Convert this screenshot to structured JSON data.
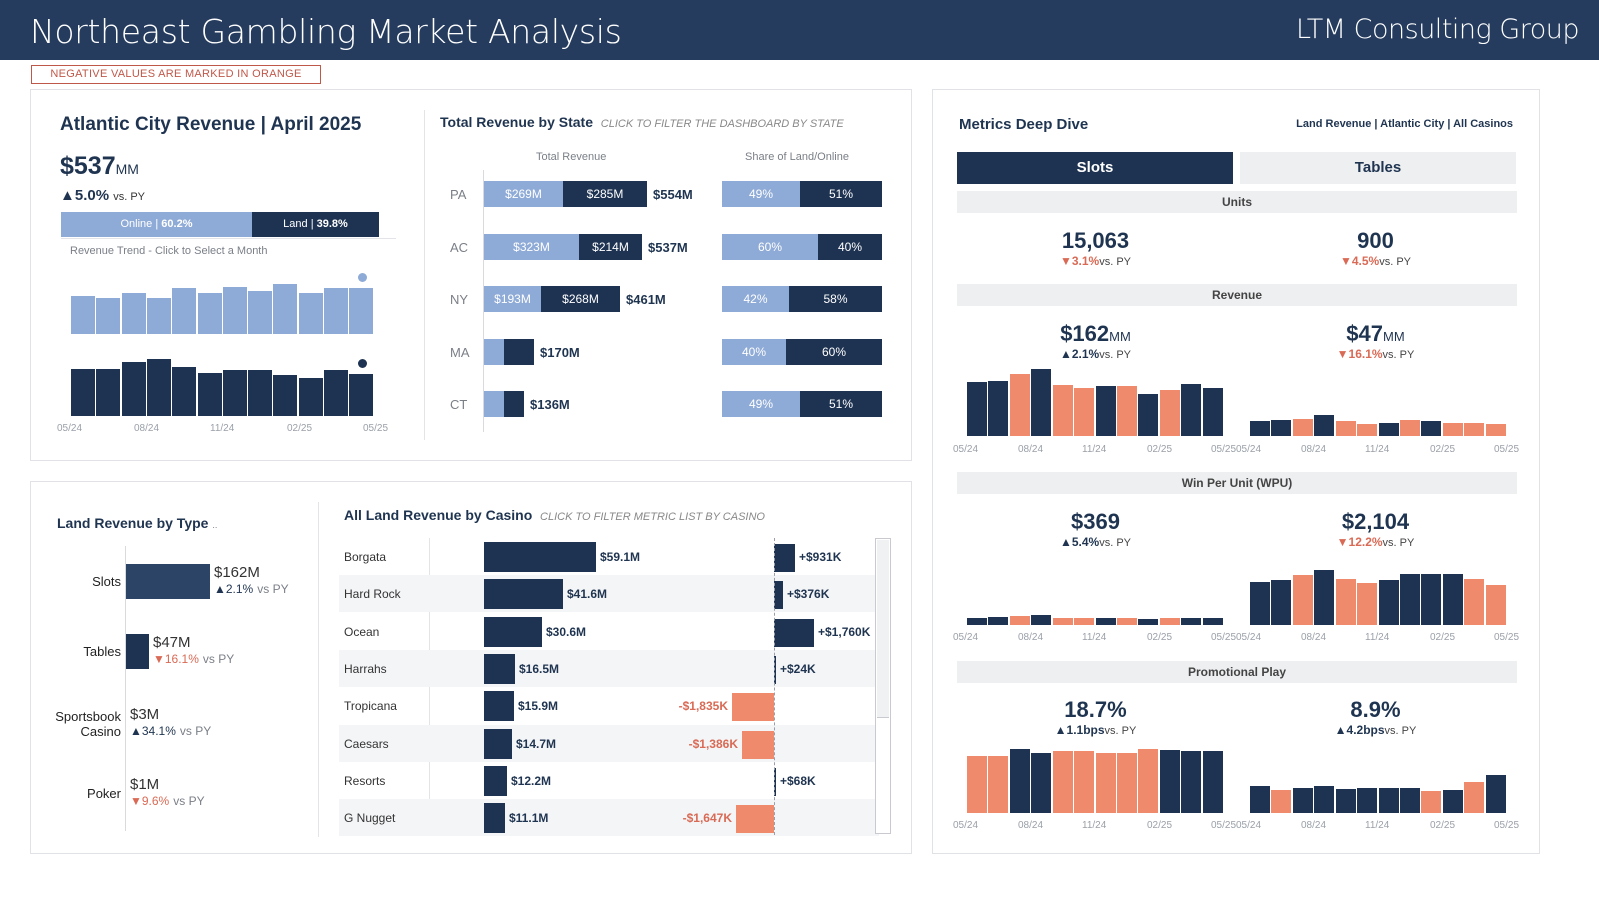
{
  "header": {
    "title": "Northeast Gambling Market Analysis",
    "company": "LTM Consulting Group"
  },
  "note": "NEGATIVE VALUES ARE MARKED IN ORANGE",
  "colors": {
    "navy": "#1e3352",
    "light": "#8eaad6",
    "orange": "#f08a6d",
    "negative": "#d96a55"
  },
  "ac": {
    "title": "Atlantic City Revenue | April 2025",
    "value": "$537",
    "unit": "MM",
    "change": "▲5.0%",
    "vs": "vs. PY",
    "online_label": "Online | ",
    "online_pct": "60.2%",
    "land_label": "Land | ",
    "land_pct": "39.8%",
    "online_share": 0.602,
    "trend_title": "Revenue Trend - Click to Select a Month",
    "online_trend": [
      0.63,
      0.6,
      0.67,
      0.6,
      0.76,
      0.68,
      0.78,
      0.7,
      0.82,
      0.68,
      0.76,
      0.75
    ],
    "land_trend": [
      0.78,
      0.77,
      0.88,
      0.94,
      0.8,
      0.7,
      0.75,
      0.76,
      0.68,
      0.63,
      0.76,
      0.69
    ],
    "x_ticks": [
      "05/24",
      "08/24",
      "11/24",
      "02/25",
      "05/25"
    ]
  },
  "states": {
    "title": "Total Revenue by State",
    "subtitle": "CLICK TO FILTER THE DASHBOARD BY STATE",
    "col1": "Total Revenue",
    "col2": "Share of Land/Online",
    "rows": [
      {
        "state": "PA",
        "online": "$269M",
        "land": "$285M",
        "total": "$554M",
        "online_v": 269,
        "land_v": 285,
        "online_pct": "49%",
        "land_pct": "51%",
        "online_share": 0.49
      },
      {
        "state": "AC",
        "online": "$323M",
        "land": "$214M",
        "total": "$537M",
        "online_v": 323,
        "land_v": 214,
        "online_pct": "60%",
        "land_pct": "40%",
        "online_share": 0.6
      },
      {
        "state": "NY",
        "online": "$193M",
        "land": "$268M",
        "total": "$461M",
        "online_v": 193,
        "land_v": 268,
        "online_pct": "42%",
        "land_pct": "58%",
        "online_share": 0.42
      },
      {
        "state": "MA",
        "online": "",
        "land": "",
        "total": "$170M",
        "online_v": 68,
        "land_v": 102,
        "online_pct": "40%",
        "land_pct": "60%",
        "online_share": 0.4
      },
      {
        "state": "CT",
        "online": "",
        "land": "",
        "total": "$136M",
        "online_v": 67,
        "land_v": 69,
        "online_pct": "49%",
        "land_pct": "51%",
        "online_share": 0.49
      }
    ]
  },
  "land_type": {
    "title": "Land Revenue by Type",
    "rows": [
      {
        "name": "Slots",
        "name2": "",
        "value": "$162M",
        "change": "▲2.1%",
        "vs": "vs PY",
        "dir": "up",
        "v": 162
      },
      {
        "name": "Tables",
        "name2": "",
        "value": "$47M",
        "change": "▼16.1%",
        "vs": "vs PY",
        "dir": "down",
        "v": 47
      },
      {
        "name": "Sportsbook",
        "name2": "Casino",
        "value": "$3M",
        "change": "▲34.1%",
        "vs": "vs PY",
        "dir": "up",
        "v": 3
      },
      {
        "name": "Poker",
        "name2": "",
        "value": "$1M",
        "change": "▼9.6%",
        "vs": "vs PY",
        "dir": "down",
        "v": 1
      }
    ]
  },
  "casino": {
    "title": "All Land Revenue by Casino",
    "subtitle": "CLICK TO FILTER METRIC LIST BY CASINO",
    "rows": [
      {
        "name": "Borgata",
        "value": "$59.1M",
        "v": 59.1,
        "delta": "+$931K",
        "d": 931
      },
      {
        "name": "Hard Rock",
        "value": "$41.6M",
        "v": 41.6,
        "delta": "+$376K",
        "d": 376
      },
      {
        "name": "Ocean",
        "value": "$30.6M",
        "v": 30.6,
        "delta": "+$1,760K",
        "d": 1760
      },
      {
        "name": "Harrahs",
        "value": "$16.5M",
        "v": 16.5,
        "delta": "+$24K",
        "d": 24
      },
      {
        "name": "Tropicana",
        "value": "$15.9M",
        "v": 15.9,
        "delta": "-$1,835K",
        "d": -1835
      },
      {
        "name": "Caesars",
        "value": "$14.7M",
        "v": 14.7,
        "delta": "-$1,386K",
        "d": -1386
      },
      {
        "name": "Resorts",
        "value": "$12.2M",
        "v": 12.2,
        "delta": "+$68K",
        "d": 68
      },
      {
        "name": "G Nugget",
        "value": "$11.1M",
        "v": 11.1,
        "delta": "-$1,647K",
        "d": -1647
      }
    ]
  },
  "metrics": {
    "title": "Metrics Deep Dive",
    "filter": "Land Revenue | Atlantic City | All Casinos",
    "tab_slots": "Slots",
    "tab_tables": "Tables",
    "sec_units": "Units",
    "sec_revenue": "Revenue",
    "sec_wpu": "Win Per Unit (WPU)",
    "sec_promo": "Promotional Play",
    "units": [
      {
        "value": "15,063",
        "change": "▼3.1%",
        "vs": "vs. PY",
        "dir": "down"
      },
      {
        "value": "900",
        "change": "▼4.5%",
        "vs": "vs. PY",
        "dir": "down"
      }
    ],
    "revenue": [
      {
        "value": "$162",
        "unit": "MM",
        "change": "▲2.1%",
        "vs": "vs. PY",
        "dir": "up"
      },
      {
        "value": "$47",
        "unit": "MM",
        "change": "▼16.1%",
        "vs": "vs. PY",
        "dir": "down"
      }
    ],
    "wpu": [
      {
        "value": "$369",
        "change": "▲5.4%",
        "vs": "vs. PY",
        "dir": "up"
      },
      {
        "value": "$2,104",
        "change": "▼12.2%",
        "vs": "vs. PY",
        "dir": "down"
      }
    ],
    "promo": [
      {
        "value": "18.7%",
        "change": "▲1.1bps",
        "vs": "vs. PY",
        "dir": "up"
      },
      {
        "value": "8.9%",
        "change": "▲4.2bps",
        "vs": "vs. PY",
        "dir": "up"
      }
    ],
    "x_ticks": [
      "05/24",
      "08/24",
      "11/24",
      "02/25",
      "05/25"
    ],
    "charts": {
      "rev_slots": {
        "v": [
          0.8,
          0.82,
          0.93,
          1.0,
          0.76,
          0.72,
          0.74,
          0.74,
          0.63,
          0.68,
          0.77,
          0.72
        ],
        "neg": [
          0,
          0,
          1,
          0,
          1,
          1,
          0,
          1,
          0,
          1,
          0,
          0
        ]
      },
      "rev_tables": {
        "v": [
          0.22,
          0.24,
          0.26,
          0.31,
          0.22,
          0.18,
          0.2,
          0.24,
          0.22,
          0.2,
          0.2,
          0.18
        ],
        "neg": [
          0,
          0,
          1,
          0,
          1,
          1,
          0,
          1,
          0,
          1,
          1,
          1
        ]
      },
      "wpu_slots": {
        "v": [
          0.1,
          0.12,
          0.13,
          0.15,
          0.1,
          0.11,
          0.11,
          0.11,
          0.09,
          0.1,
          0.1,
          0.1
        ],
        "neg": [
          0,
          0,
          1,
          0,
          1,
          1,
          0,
          1,
          0,
          1,
          0,
          0
        ]
      },
      "wpu_tables": {
        "v": [
          0.64,
          0.67,
          0.74,
          0.82,
          0.68,
          0.62,
          0.67,
          0.76,
          0.76,
          0.76,
          0.68,
          0.6
        ],
        "neg": [
          0,
          0,
          1,
          0,
          1,
          1,
          0,
          0,
          0,
          0,
          1,
          1
        ]
      },
      "promo_slots": {
        "v": [
          0.85,
          0.85,
          0.96,
          0.9,
          0.93,
          0.93,
          0.9,
          0.9,
          0.96,
          0.94,
          0.92,
          0.92
        ],
        "neg": [
          1,
          1,
          0,
          0,
          1,
          1,
          1,
          1,
          1,
          0,
          0,
          0
        ]
      },
      "promo_tables": {
        "v": [
          0.4,
          0.35,
          0.38,
          0.4,
          0.36,
          0.38,
          0.38,
          0.38,
          0.33,
          0.35,
          0.46,
          0.56
        ],
        "neg": [
          0,
          1,
          0,
          0,
          0,
          0,
          0,
          0,
          1,
          0,
          1,
          0
        ]
      }
    }
  }
}
